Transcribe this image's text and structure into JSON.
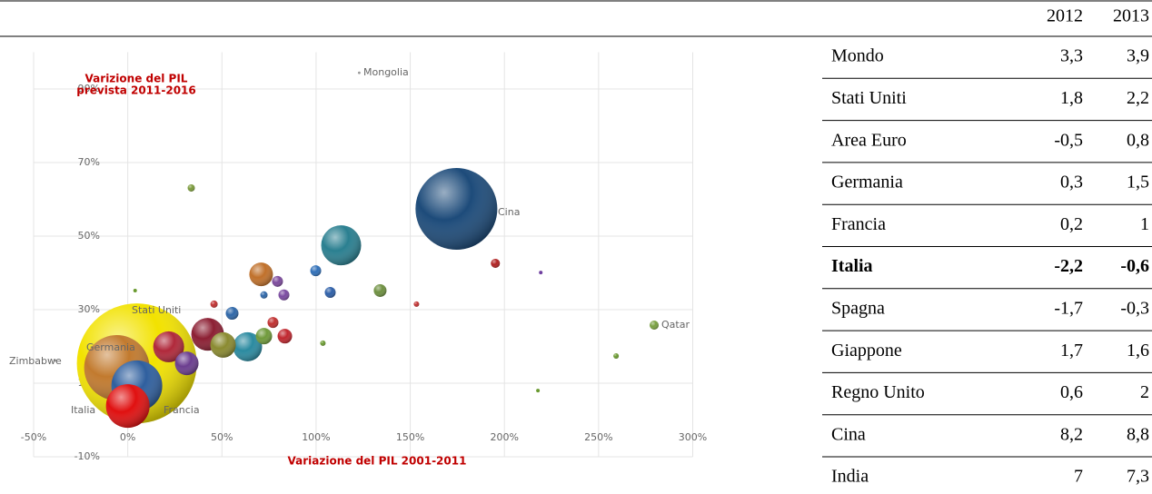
{
  "chart_data": {
    "type": "bubble",
    "ylabel": [
      "Varizione del PIL",
      "prevista 2011-2016"
    ],
    "xlabel": "Variazione del PIL 2001-2011",
    "xlim": [
      -50,
      300
    ],
    "xticks": [
      {
        "value": -50,
        "label": "-50%"
      },
      {
        "value": 0,
        "label": "0%"
      },
      {
        "value": 50,
        "label": "50%"
      },
      {
        "value": 100,
        "label": "100%"
      },
      {
        "value": 150,
        "label": "150%"
      },
      {
        "value": 200,
        "label": "200%"
      },
      {
        "value": 250,
        "label": "250%"
      },
      {
        "value": 300,
        "label": "300%"
      }
    ],
    "ylim": [
      -10,
      100
    ],
    "yticks": [
      {
        "value": -10,
        "label": "-10%"
      },
      {
        "value": 10,
        "label": "10%"
      },
      {
        "value": 30,
        "label": "30%"
      },
      {
        "value": 50,
        "label": "50%"
      },
      {
        "value": 70,
        "label": "70%"
      },
      {
        "value": 90,
        "label": "90%"
      }
    ],
    "grid": true,
    "x": [
      4.8,
      174.5,
      -5.8,
      4.8,
      0,
      113.3,
      42.4,
      21.7,
      63.6,
      50.6,
      31.3,
      70.8,
      72.3,
      83.4,
      134,
      55.4,
      99.8,
      107.5,
      82.9,
      79.5,
      77.1,
      195.2,
      279.5,
      33.7,
      45.8,
      72.3,
      153.3,
      259.3,
      103.6,
      219.3,
      217.8,
      3.9,
      122.9,
      -38.6
    ],
    "y": [
      15.4,
      57.4,
      14.2,
      9.3,
      3.8,
      47.5,
      23.3,
      19.9,
      19.9,
      20.4,
      15.4,
      39.6,
      22.8,
      22.8,
      35.2,
      29,
      40.6,
      34.7,
      34,
      37.7,
      26.5,
      42.6,
      25.8,
      63.1,
      31.5,
      34,
      31.5,
      17.4,
      20.9,
      40.1,
      8,
      35.2,
      94.4,
      16.2
    ],
    "size": [
      4356,
      2025,
      1296,
      784,
      576,
      484,
      324,
      289,
      256,
      196,
      169,
      169,
      81,
      64,
      49,
      49,
      36,
      36,
      36,
      36,
      36,
      25,
      25,
      16,
      16,
      16,
      9,
      9,
      9,
      4,
      4,
      4,
      2,
      2
    ],
    "colors": [
      "#f2e200",
      "#1d4b7a",
      "#c27a2e",
      "#2f5f9e",
      "#e01010",
      "#2a7f90",
      "#8c1f33",
      "#b0283a",
      "#2a8aa0",
      "#8a8a30",
      "#6b3d8f",
      "#c0702a",
      "#6f9a3a",
      "#c0262e",
      "#6e9040",
      "#2d66a8",
      "#2f6fb8",
      "#2d5fa8",
      "#7a4aa0",
      "#7c4a9c",
      "#c03030",
      "#b02020",
      "#78a040",
      "#7a9a3a",
      "#c03030",
      "#2d66a8",
      "#c03030",
      "#6a9a30",
      "#6a9a30",
      "#7040a0",
      "#6a9a30",
      "#6a9a30",
      "#999999",
      "#999999"
    ],
    "labels": [
      "Stati Uniti",
      "Cina",
      "Germania",
      "Francia",
      "Italia",
      null,
      null,
      null,
      null,
      null,
      null,
      null,
      null,
      null,
      null,
      null,
      null,
      null,
      null,
      null,
      null,
      null,
      "Qatar",
      null,
      null,
      null,
      null,
      null,
      null,
      null,
      null,
      null,
      "Mongolia",
      "Zimbabwe"
    ]
  },
  "table": {
    "header": [
      "2012",
      "2013"
    ],
    "rows": [
      [
        "Mondo",
        "3,3",
        "3,9"
      ],
      [
        "Stati Uniti",
        "1,8",
        "2,2"
      ],
      [
        "Area Euro",
        "-0,5",
        "0,8"
      ],
      [
        "Germania",
        "0,3",
        "1,5"
      ],
      [
        "Francia",
        "0,2",
        "1"
      ],
      [
        "Italia",
        "-2,2",
        "-0,6"
      ],
      [
        "Spagna",
        "-1,7",
        "-0,3"
      ],
      [
        "Giappone",
        "1,7",
        "1,6"
      ],
      [
        "Regno Unito",
        "0,6",
        "2"
      ],
      [
        "Cina",
        "8,2",
        "8,8"
      ],
      [
        "India",
        "7",
        "7,3"
      ]
    ],
    "bold_rows": [
      5
    ]
  }
}
